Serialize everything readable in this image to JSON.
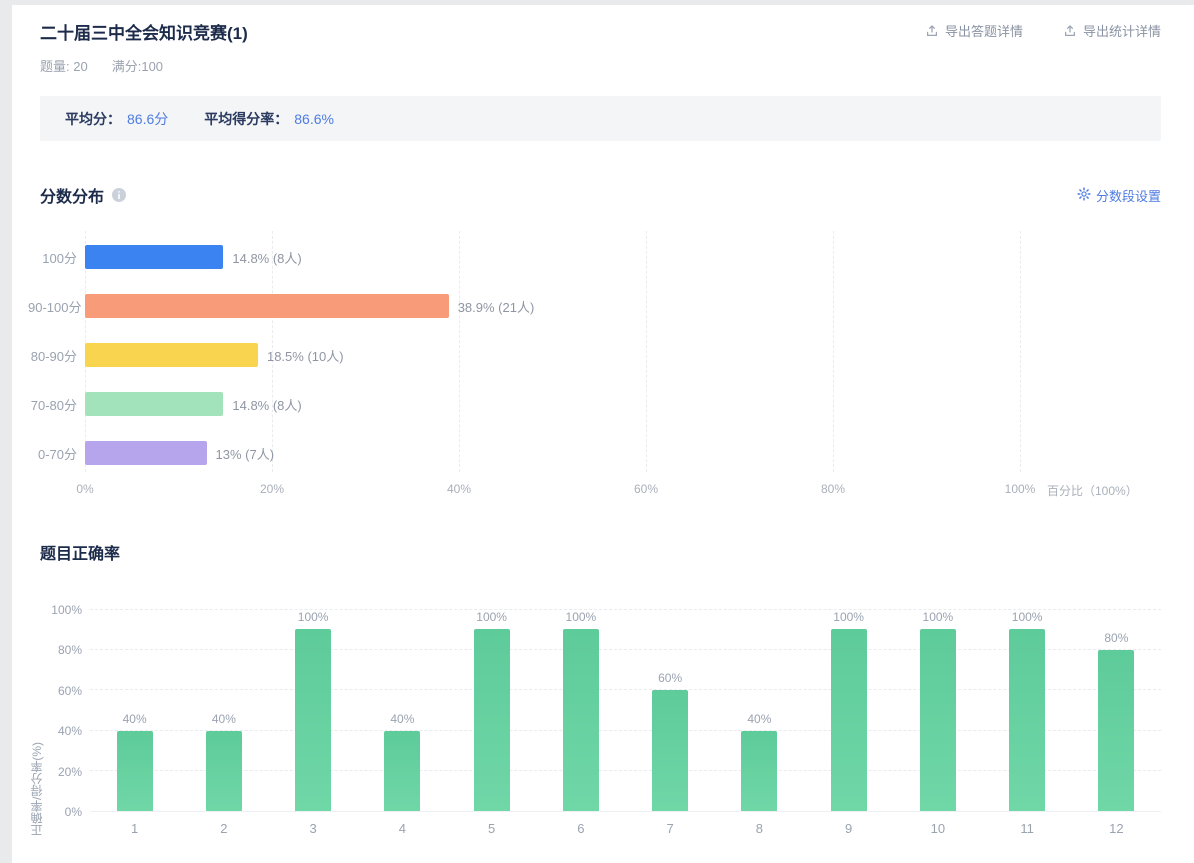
{
  "header": {
    "title": "二十届三中全会知识竞赛(1)",
    "export_answer_button": "导出答题详情",
    "export_stats_button": "导出统计详情",
    "meta": {
      "question_count_label": "题量:",
      "question_count": "20",
      "full_score_label": "满分:",
      "full_score": "100"
    }
  },
  "summary": {
    "avg_score_label": "平均分：",
    "avg_score_value": "86.6分",
    "avg_rate_label": "平均得分率：",
    "avg_rate_value": "86.6%"
  },
  "score_distribution_section": {
    "title": "分数分布",
    "settings_button": "分数段设置"
  },
  "question_accuracy_section": {
    "title": "题目正确率"
  },
  "icons": {
    "export_icon": "upload-tray-with-up-arrow",
    "info_icon": "gray-circle-letter-i",
    "settings_icon": "gear"
  },
  "colors": {
    "accent_blue": "#4e7ce1",
    "text_dark": "#1c2b4a",
    "text_gray": "#9aa3b0",
    "summary_bg": "#f4f5f7"
  },
  "chart_data": [
    {
      "type": "bar",
      "orientation": "horizontal",
      "title": "分数分布",
      "categories": [
        "100分",
        "90-100分",
        "80-90分",
        "70-80分",
        "0-70分"
      ],
      "values": [
        14.8,
        38.9,
        18.5,
        14.8,
        13
      ],
      "labels": [
        "14.8% (8人)",
        "38.9% (21人)",
        "18.5% (10人)",
        "14.8% (8人)",
        "13% (7人)"
      ],
      "colors": [
        "#3c83f2",
        "#f89b78",
        "#f9d44f",
        "#a2e3bb",
        "#b6a5ec"
      ],
      "x_ticks": [
        "0%",
        "20%",
        "40%",
        "60%",
        "80%",
        "100%"
      ],
      "x_axis_title": "百分比（100%）",
      "xlim": [
        0,
        100
      ],
      "grid": "vertical-dashed",
      "legend": "none"
    },
    {
      "type": "bar",
      "orientation": "vertical",
      "title": "题目正确率",
      "categories": [
        "1",
        "2",
        "3",
        "4",
        "5",
        "6",
        "7",
        "8",
        "9",
        "10",
        "11",
        "12"
      ],
      "values": [
        40,
        40,
        100,
        40,
        100,
        100,
        60,
        40,
        100,
        100,
        100,
        80
      ],
      "labels": [
        "40%",
        "40%",
        "100%",
        "40%",
        "100%",
        "100%",
        "60%",
        "40%",
        "100%",
        "100%",
        "100%",
        "80%"
      ],
      "ylabel": "正确率/得分率(%)",
      "y_ticks": [
        "0%",
        "20%",
        "40%",
        "60%",
        "80%",
        "100%"
      ],
      "ylim": [
        0,
        100
      ],
      "bar_color": {
        "top": "#5ecb9a",
        "bottom": "#70d7a7"
      },
      "grid": "horizontal-dashed",
      "legend": "none"
    }
  ]
}
